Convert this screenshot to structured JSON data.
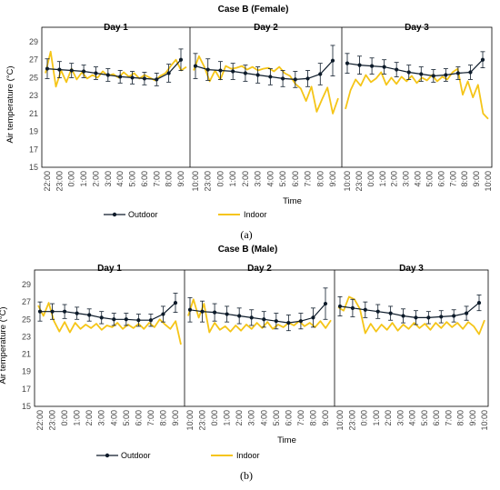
{
  "colors": {
    "outdoor": "#0d1b2a",
    "indoor": "#f5c518",
    "frame": "#000000",
    "grid": "#d9d9d9"
  },
  "chart_data": [
    {
      "type": "line",
      "title": "Case B (Female)",
      "panel_label": "(a)",
      "xlabel": "Time",
      "ylabel": "Air temperature (°C)",
      "ylim": [
        15,
        29
      ],
      "yticks": [
        15,
        17,
        19,
        21,
        23,
        25,
        27,
        29
      ],
      "legend_placement": "bottom-center",
      "grid": false,
      "day_labels": [
        "Day 1",
        "Day 2",
        "Day 3"
      ],
      "x_tick_labels": [
        [
          "22:00",
          "23:00",
          "0:00",
          "1:00",
          "2:00",
          "3:00",
          "4:00",
          "5:00",
          "6:00",
          "7:00",
          "8:00",
          "9:00"
        ],
        [
          "10:00",
          "23:00",
          "0:00",
          "1:00",
          "2:00",
          "3:00",
          "4:00",
          "5:00",
          "6:00",
          "7:00",
          "8:00",
          "9:00"
        ],
        [
          "10:00",
          "23:00",
          "0:00",
          "1:00",
          "2:00",
          "3:00",
          "4:00",
          "5:00",
          "6:00",
          "7:00",
          "8:00",
          "9:00",
          "10:00"
        ]
      ],
      "series": [
        {
          "name": "Outdoor",
          "days": [
            [
              26.0,
              25.9,
              25.8,
              25.7,
              25.5,
              25.3,
              25.1,
              25.0,
              24.9,
              24.8,
              25.5,
              27.0
            ],
            [
              26.3,
              25.9,
              25.8,
              25.7,
              25.5,
              25.3,
              25.1,
              24.9,
              24.8,
              24.9,
              25.4,
              26.9
            ],
            [
              26.6,
              26.4,
              26.3,
              26.2,
              25.9,
              25.6,
              25.4,
              25.2,
              25.3,
              25.5,
              25.6,
              27.0
            ]
          ],
          "error": [
            [
              1.1,
              0.9,
              0.8,
              0.7,
              0.7,
              0.7,
              0.7,
              0.7,
              0.7,
              0.7,
              1.0,
              1.2
            ],
            [
              1.4,
              1.2,
              1.0,
              0.9,
              0.9,
              0.9,
              0.9,
              0.9,
              0.9,
              0.9,
              1.2,
              1.7
            ],
            [
              1.1,
              1.0,
              0.9,
              0.8,
              0.8,
              0.8,
              0.8,
              0.7,
              0.7,
              0.7,
              0.8,
              0.9
            ]
          ]
        },
        {
          "name": "Indoor",
          "days": [
            [
              25.5,
              27.9,
              24.0,
              25.8,
              24.5,
              26.0,
              24.8,
              25.6,
              24.9,
              25.3,
              25.0,
              25.7,
              25.2,
              25.4,
              25.0,
              25.6,
              25.1,
              25.5,
              24.9,
              25.3,
              25.0,
              24.7,
              25.2,
              25.5,
              26.3,
              27.0,
              25.8,
              26.2
            ],
            [
              25.8,
              27.4,
              26.2,
              24.6,
              25.8,
              24.8,
              26.3,
              26.0,
              26.1,
              26.3,
              25.9,
              26.2,
              25.8,
              26.0,
              26.1,
              25.7,
              26.2,
              25.5,
              25.2,
              24.3,
              23.8,
              22.4,
              24.0,
              21.2,
              22.6,
              23.9,
              21.0,
              22.7
            ],
            [
              21.5,
              23.6,
              24.8,
              24.1,
              25.3,
              24.5,
              24.9,
              25.6,
              24.2,
              25.0,
              24.3,
              25.1,
              24.6,
              25.2,
              24.4,
              25.0,
              24.7,
              25.3,
              24.6,
              25.1,
              24.8,
              25.6,
              26.0,
              23.1,
              24.6,
              22.8,
              24.2,
              21.0,
              20.4
            ]
          ]
        }
      ]
    },
    {
      "type": "line",
      "title": "Case B (Male)",
      "panel_label": "(b)",
      "xlabel": "Time",
      "ylabel": "Air temperature (°C)",
      "ylim": [
        15,
        29
      ],
      "yticks": [
        15,
        17,
        19,
        21,
        23,
        25,
        27,
        29
      ],
      "legend_placement": "bottom-center",
      "grid": false,
      "day_labels": [
        "Day 1",
        "Day 2",
        "Day 3"
      ],
      "x_tick_labels": [
        [
          "22:00",
          "23:00",
          "0:00",
          "1:00",
          "2:00",
          "3:00",
          "4:00",
          "5:00",
          "6:00",
          "7:00",
          "8:00",
          "9:00"
        ],
        [
          "10:00",
          "23:00",
          "0:00",
          "1:00",
          "2:00",
          "3:00",
          "4:00",
          "5:00",
          "6:00",
          "7:00",
          "8:00",
          "9:00"
        ],
        [
          "10:00",
          "23:00",
          "0:00",
          "1:00",
          "2:00",
          "3:00",
          "4:00",
          "5:00",
          "6:00",
          "7:00",
          "8:00",
          "9:00",
          "10:00"
        ]
      ],
      "series": [
        {
          "name": "Outdoor",
          "days": [
            [
              25.9,
              25.9,
              25.9,
              25.7,
              25.5,
              25.2,
              25.0,
              25.0,
              24.9,
              24.9,
              25.6,
              26.9
            ],
            [
              26.1,
              25.9,
              25.8,
              25.6,
              25.4,
              25.2,
              25.0,
              24.8,
              24.6,
              24.8,
              25.2,
              26.8
            ],
            [
              26.5,
              26.3,
              26.1,
              25.9,
              25.7,
              25.4,
              25.2,
              25.2,
              25.3,
              25.4,
              25.7,
              26.9
            ]
          ],
          "error": [
            [
              1.1,
              0.9,
              0.8,
              0.7,
              0.7,
              0.7,
              0.7,
              0.7,
              0.7,
              0.7,
              0.9,
              1.1
            ],
            [
              1.4,
              1.2,
              1.0,
              0.9,
              0.9,
              0.9,
              0.9,
              0.9,
              0.9,
              0.9,
              1.1,
              1.8
            ],
            [
              1.1,
              1.0,
              0.9,
              0.8,
              0.8,
              0.8,
              0.8,
              0.7,
              0.7,
              0.7,
              0.8,
              0.9
            ]
          ]
        },
        {
          "name": "Indoor",
          "days": [
            [
              26.6,
              25.4,
              26.9,
              24.8,
              23.6,
              24.7,
              23.5,
              24.6,
              23.9,
              24.4,
              24.0,
              24.5,
              23.8,
              24.3,
              24.1,
              24.6,
              23.9,
              24.4,
              24.0,
              24.5,
              23.9,
              24.6,
              24.1,
              25.0,
              24.4,
              23.9,
              24.8,
              22.1
            ],
            [
              25.4,
              27.3,
              25.2,
              26.8,
              23.5,
              24.6,
              23.8,
              24.2,
              23.6,
              24.3,
              23.7,
              24.4,
              23.9,
              24.6,
              24.0,
              24.7,
              23.9,
              24.4,
              24.1,
              24.6,
              24.3,
              24.8,
              24.2,
              24.6,
              24.1,
              24.8,
              24.0,
              24.9
            ],
            [
              26.4,
              26.0,
              27.6,
              27.3,
              26.2,
              23.4,
              24.5,
              23.6,
              24.4,
              23.8,
              24.6,
              23.7,
              24.4,
              23.9,
              24.6,
              24.0,
              24.5,
              23.8,
              24.6,
              24.0,
              24.7,
              24.1,
              24.6,
              23.9,
              24.7,
              24.2,
              23.3,
              24.9
            ]
          ]
        }
      ]
    }
  ]
}
